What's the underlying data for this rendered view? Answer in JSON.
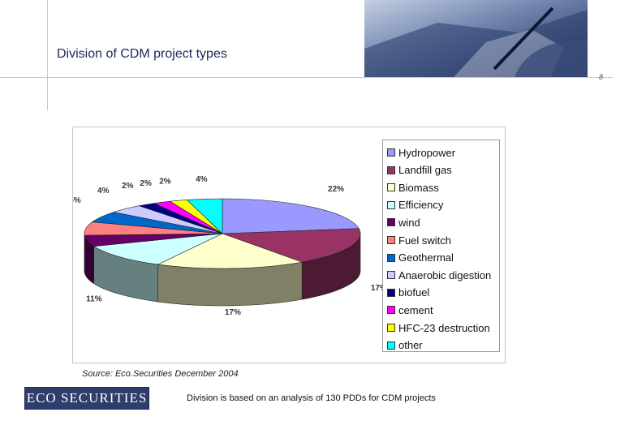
{
  "slide": {
    "title": "Division of CDM project types",
    "page_number": "8",
    "source": "Source: Eco.Securities December 2004",
    "note": "Division is based on an analysis of 130 PDDs for CDM projects",
    "logo_text": "ECO SECURITIES"
  },
  "chart_data": {
    "type": "pie",
    "title": "",
    "legend_position": "right",
    "slices": [
      {
        "label": "Hydropower",
        "value": 22,
        "display": "22%",
        "color": "#9999ff"
      },
      {
        "label": "Landfill gas",
        "value": 17,
        "display": "17%",
        "color": "#993366"
      },
      {
        "label": "Biomass",
        "value": 17,
        "display": "17%",
        "color": "#ffffcc"
      },
      {
        "label": "Efficiency",
        "value": 11,
        "display": "11%",
        "color": "#ccffff"
      },
      {
        "label": "wind",
        "value": 5,
        "display": "%",
        "color": "#660066"
      },
      {
        "label": "Fuel switch",
        "value": 6,
        "display": "6%",
        "color": "#ff8080"
      },
      {
        "label": "Geothermal",
        "value": 5,
        "display": "5%",
        "color": "#0066cc"
      },
      {
        "label": "Anaerobic digestion",
        "value": 4,
        "display": "4%",
        "color": "#ccccff"
      },
      {
        "label": "biofuel",
        "value": 2,
        "display": "2%",
        "color": "#000080"
      },
      {
        "label": "cement",
        "value": 2,
        "display": "2%",
        "color": "#ff00ff"
      },
      {
        "label": "HFC-23 destruction",
        "value": 2,
        "display": "2%",
        "color": "#ffff00"
      },
      {
        "label": "other",
        "value": 4,
        "display": "4%",
        "color": "#00ffff"
      }
    ]
  }
}
